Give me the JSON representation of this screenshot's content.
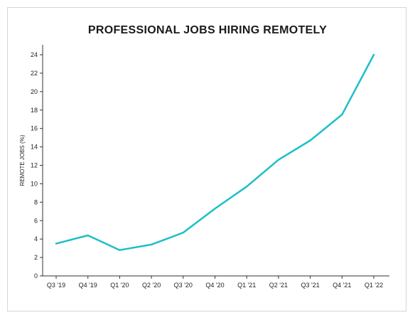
{
  "chart_data": {
    "type": "line",
    "title": "PROFESSIONAL JOBS HIRING REMOTELY",
    "xlabel": "",
    "ylabel": "REMOTE JOBS (%)",
    "categories": [
      "Q3 '19",
      "Q4 '19",
      "Q1 '20",
      "Q2 '20",
      "Q3 '20",
      "Q4 '20",
      "Q1 '21",
      "Q2 '21",
      "Q3 '21",
      "Q4 '21",
      "Q1 '22"
    ],
    "series": [
      {
        "values": [
          3.5,
          4.4,
          2.8,
          3.4,
          4.7,
          7.3,
          9.7,
          12.6,
          14.7,
          17.5,
          24.0
        ],
        "color": "#1cbfc9"
      }
    ],
    "ylim": [
      0,
      24
    ],
    "yticks": [
      0,
      2,
      4,
      6,
      8,
      10,
      12,
      14,
      16,
      18,
      20,
      22,
      24
    ],
    "grid": false,
    "legend": "none"
  }
}
